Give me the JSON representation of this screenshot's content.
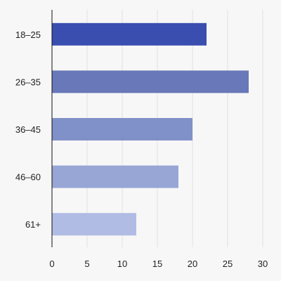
{
  "colors": {
    "background": "#f7f7f7",
    "grid": "#e2e2e2",
    "axis": "#111111",
    "text": "#222222"
  },
  "chart_data": {
    "type": "bar",
    "orientation": "horizontal",
    "title": "",
    "xlabel": "",
    "ylabel": "",
    "categories": [
      "18–25",
      "26–35",
      "36–45",
      "46–60",
      "61+"
    ],
    "values": [
      22,
      28,
      20,
      18,
      12
    ],
    "bar_colors": [
      "#3a4eb0",
      "#6878b8",
      "#8090c8",
      "#98a6d6",
      "#b0bce4"
    ],
    "xlim": [
      0,
      30
    ],
    "xticks": [
      0,
      5,
      10,
      15,
      20,
      25,
      30
    ],
    "grid": "vertical",
    "legend": "none"
  }
}
